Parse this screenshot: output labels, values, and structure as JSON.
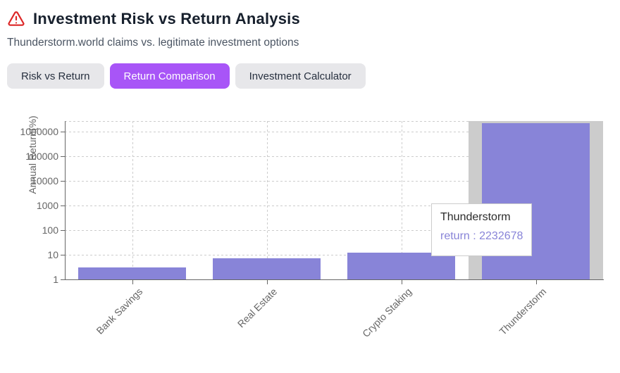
{
  "page": {
    "title": "Investment Risk vs Return Analysis",
    "subtitle": "Thunderstorm.world claims vs. legitimate investment options"
  },
  "tabs": [
    {
      "label": "Risk vs Return",
      "active": false
    },
    {
      "label": "Return Comparison",
      "active": true
    },
    {
      "label": "Investment Calculator",
      "active": false
    }
  ],
  "colors": {
    "accent_purple": "#a855f7",
    "bar_fill": "#8884d8",
    "warning_red": "#dc2626",
    "hover_band_gray": "#cccccc",
    "grid_gray": "#cccccc",
    "axis_gray": "#666666",
    "tooltip_border": "#cccccc"
  },
  "chart_data": {
    "type": "bar",
    "title": "",
    "categories": [
      "Bank Savings",
      "Real Estate",
      "Crypto Staking",
      "Thunderstorm"
    ],
    "values": [
      3,
      7,
      12,
      2232678
    ],
    "series_name": "return",
    "xlabel": "",
    "ylabel": "Annual Return(%)",
    "y_scale": "log",
    "y_ticks": [
      1,
      10,
      100,
      1000,
      10000,
      100000,
      1000000
    ],
    "y_tick_labels": [
      "1",
      "10",
      "100",
      "1000",
      "10000",
      "100000",
      "1000000"
    ],
    "ylim_log_decades": [
      0,
      6.43
    ],
    "grid": true,
    "legend": false,
    "bar_width_ratio": 0.8,
    "hovered_index": 3
  },
  "tooltip": {
    "label": "Thunderstorm",
    "value_text": "return : 2232678"
  }
}
